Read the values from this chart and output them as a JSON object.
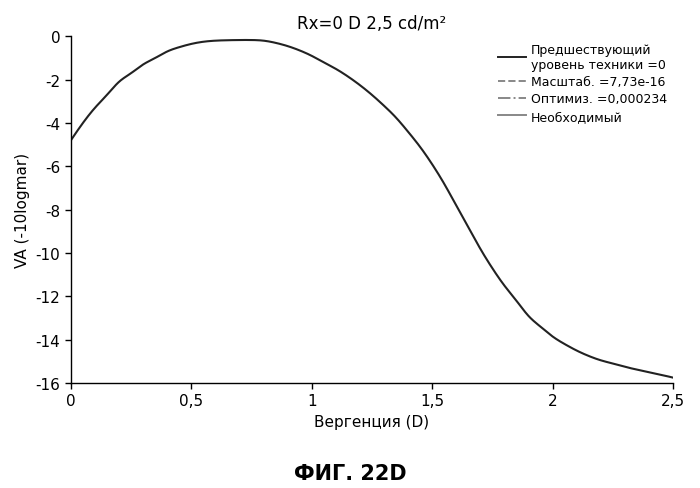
{
  "title": "Rx=0 D 2,5 cd/m²",
  "xlabel": "Вергенция (D)",
  "ylabel": "VA (-10logmar)",
  "xlim": [
    0,
    2.5
  ],
  "ylim": [
    -16,
    0
  ],
  "xticks": [
    0,
    0.5,
    1.0,
    1.5,
    2.0,
    2.5
  ],
  "xticklabels": [
    "0",
    "0,5",
    "1",
    "1,5",
    "2",
    "2,5"
  ],
  "yticks": [
    0,
    -2,
    -4,
    -6,
    -8,
    -10,
    -12,
    -14,
    -16
  ],
  "fig_caption": "ФИГ. 22D",
  "legend_entries": [
    {
      "label": "Предшествующий\nуровень техники =0",
      "linestyle": "solid",
      "color": "#222222"
    },
    {
      "label": "Масштаб. =7,73e-16",
      "linestyle": "dashed",
      "color": "#888888"
    },
    {
      "label": "Оптимиз. =0,000234",
      "linestyle": "dashdot",
      "color": "#888888"
    },
    {
      "label": "Необходимый",
      "linestyle": "solid",
      "color": "#888888"
    }
  ],
  "curve_color": "#222222",
  "background_color": "#ffffff",
  "curve_x": [
    0.0,
    0.05,
    0.1,
    0.15,
    0.2,
    0.25,
    0.3,
    0.35,
    0.4,
    0.45,
    0.5,
    0.55,
    0.6,
    0.65,
    0.7,
    0.75,
    0.8,
    0.85,
    0.9,
    0.95,
    1.0,
    1.05,
    1.1,
    1.15,
    1.2,
    1.25,
    1.3,
    1.35,
    1.4,
    1.45,
    1.5,
    1.55,
    1.6,
    1.65,
    1.7,
    1.75,
    1.8,
    1.85,
    1.9,
    1.95,
    2.0,
    2.05,
    2.1,
    2.15,
    2.2,
    2.25,
    2.3,
    2.35,
    2.4,
    2.45,
    2.5
  ],
  "curve_y": [
    -4.8,
    -4.0,
    -3.3,
    -2.7,
    -2.1,
    -1.7,
    -1.3,
    -1.0,
    -0.7,
    -0.5,
    -0.35,
    -0.25,
    -0.2,
    -0.18,
    -0.17,
    -0.17,
    -0.2,
    -0.3,
    -0.45,
    -0.65,
    -0.9,
    -1.2,
    -1.5,
    -1.85,
    -2.25,
    -2.7,
    -3.2,
    -3.75,
    -4.4,
    -5.1,
    -5.9,
    -6.8,
    -7.8,
    -8.8,
    -9.8,
    -10.7,
    -11.5,
    -12.2,
    -12.9,
    -13.4,
    -13.85,
    -14.2,
    -14.5,
    -14.75,
    -14.95,
    -15.1,
    -15.25,
    -15.38,
    -15.5,
    -15.62,
    -15.75
  ]
}
